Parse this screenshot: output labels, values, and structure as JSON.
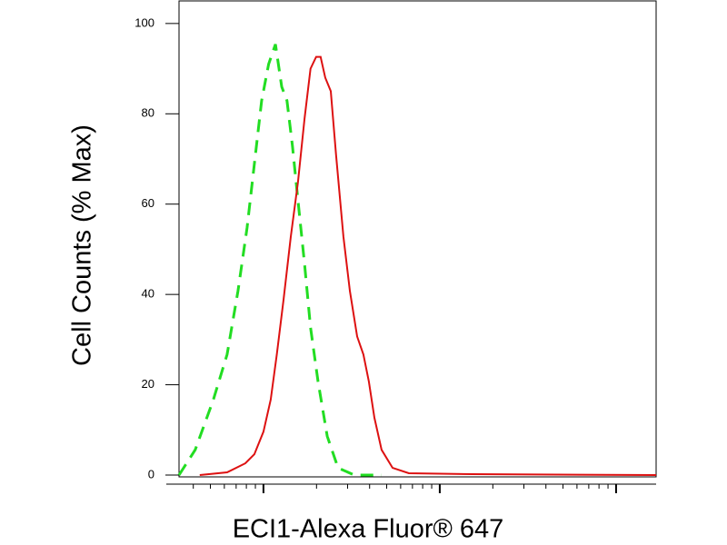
{
  "chart_data": {
    "type": "line",
    "x_label": "ECI1-Alexa Fluor® 647",
    "y_label": "Cell Counts (% Max)",
    "x_scale": "log",
    "xlim": [
      3.32,
      1687
    ],
    "xticks": [
      10,
      100,
      1000
    ],
    "ylim": [
      -0.4,
      105
    ],
    "yticks": [
      0,
      20,
      40,
      60,
      80,
      100
    ],
    "series": [
      {
        "color": "#22dd22",
        "dash": true,
        "x": [
          3.32,
          4.1,
          5.2,
          6.22,
          7.17,
          8.08,
          8.88,
          9.77,
          10.7,
          11.7,
          12.7,
          13.6,
          14.6,
          15.7,
          17.1,
          18.5,
          20.4,
          23.0,
          26.5,
          32.8,
          46.8
        ],
        "values": [
          0,
          5.6,
          16.7,
          26.7,
          40.8,
          54.8,
          68.9,
          82.9,
          91,
          95.4,
          86,
          82.9,
          72.9,
          60.8,
          46.8,
          32.7,
          20.7,
          8.6,
          1.6,
          0,
          0
        ]
      },
      {
        "color": "#dd1111",
        "dash": false,
        "x": [
          4.35,
          6.22,
          7.89,
          8.88,
          10,
          11.0,
          11.9,
          13.0,
          14.3,
          15.7,
          17.1,
          18.5,
          19.9,
          21.1,
          22.4,
          24.1,
          25.8,
          28.4,
          30.9,
          34.0,
          36.9,
          39.6,
          42.6,
          46.8,
          54.0,
          66.8,
          153,
          1687
        ],
        "values": [
          0,
          0.6,
          2.6,
          4.6,
          9.6,
          16.7,
          26.7,
          38.8,
          52.8,
          64.9,
          78.9,
          90,
          92.6,
          92.6,
          88,
          85,
          70.9,
          52.8,
          40.8,
          30.7,
          26.7,
          20.7,
          12.7,
          5.6,
          1.6,
          0.4,
          0.2,
          0
        ]
      }
    ]
  }
}
